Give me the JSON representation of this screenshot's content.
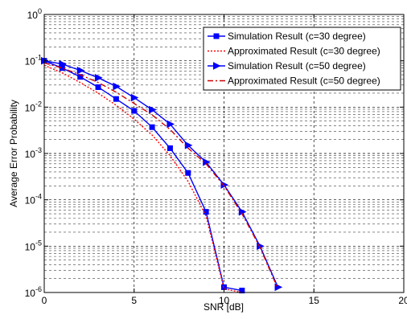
{
  "chart_data": {
    "type": "line",
    "xlabel": "SNR [dB]",
    "ylabel": "Average Error Probability",
    "xlim": [
      0,
      20
    ],
    "ylim": [
      1e-06,
      1
    ],
    "yscale": "log",
    "grid": "on",
    "legend_position": "top-right",
    "x_ticks": [
      "0",
      "5",
      "10",
      "15",
      "20"
    ],
    "y_ticks": [
      {
        "base": "10",
        "exp": "0"
      },
      {
        "base": "10",
        "exp": "-1"
      },
      {
        "base": "10",
        "exp": "-2"
      },
      {
        "base": "10",
        "exp": "-3"
      },
      {
        "base": "10",
        "exp": "-4"
      },
      {
        "base": "10",
        "exp": "-5"
      },
      {
        "base": "10",
        "exp": "-6"
      }
    ],
    "series": [
      {
        "name": "Simulation Result (c=30 degree)",
        "color": "#0000ff",
        "line": "solid",
        "marker": "square",
        "x": [
          0,
          1,
          2,
          3,
          4,
          5,
          6,
          7,
          8,
          9,
          10,
          11
        ],
        "y": [
          0.1,
          0.07,
          0.045,
          0.027,
          0.015,
          0.0083,
          0.0037,
          0.0013,
          0.00038,
          5.5e-05,
          1.3e-06,
          1.1e-06
        ]
      },
      {
        "name": "Approximated Result (c=30 degree)",
        "color": "#ff0000",
        "line": "dotted",
        "marker": "none",
        "x": [
          0,
          1,
          2,
          3,
          4,
          5,
          6,
          7,
          8,
          9,
          10,
          11
        ],
        "y": [
          0.08,
          0.055,
          0.034,
          0.02,
          0.011,
          0.0055,
          0.0025,
          0.0009,
          0.00025,
          4.5e-05,
          1.2e-06,
          1e-06
        ]
      },
      {
        "name": "Simulation Result (c=50 degree)",
        "color": "#0000ff",
        "line": "solid",
        "marker": "triangle-right",
        "x": [
          0,
          1,
          2,
          3,
          4,
          5,
          6,
          7,
          8,
          9,
          10,
          11,
          12,
          13
        ],
        "y": [
          0.1,
          0.085,
          0.062,
          0.043,
          0.028,
          0.016,
          0.0088,
          0.0043,
          0.0015,
          0.00065,
          0.00021,
          5.5e-05,
          1e-05,
          1.3e-06
        ]
      },
      {
        "name": "Approximated Result (c=50 degree)",
        "color": "#cc0000",
        "line": "dashdot",
        "marker": "none",
        "x": [
          0,
          1,
          2,
          3,
          4,
          5,
          6,
          7,
          8,
          9,
          10,
          11,
          12,
          13
        ],
        "y": [
          0.09,
          0.07,
          0.05,
          0.034,
          0.021,
          0.012,
          0.0068,
          0.0033,
          0.0013,
          0.0006,
          0.0002,
          5e-05,
          9.5e-06,
          1.2e-06
        ]
      }
    ]
  }
}
